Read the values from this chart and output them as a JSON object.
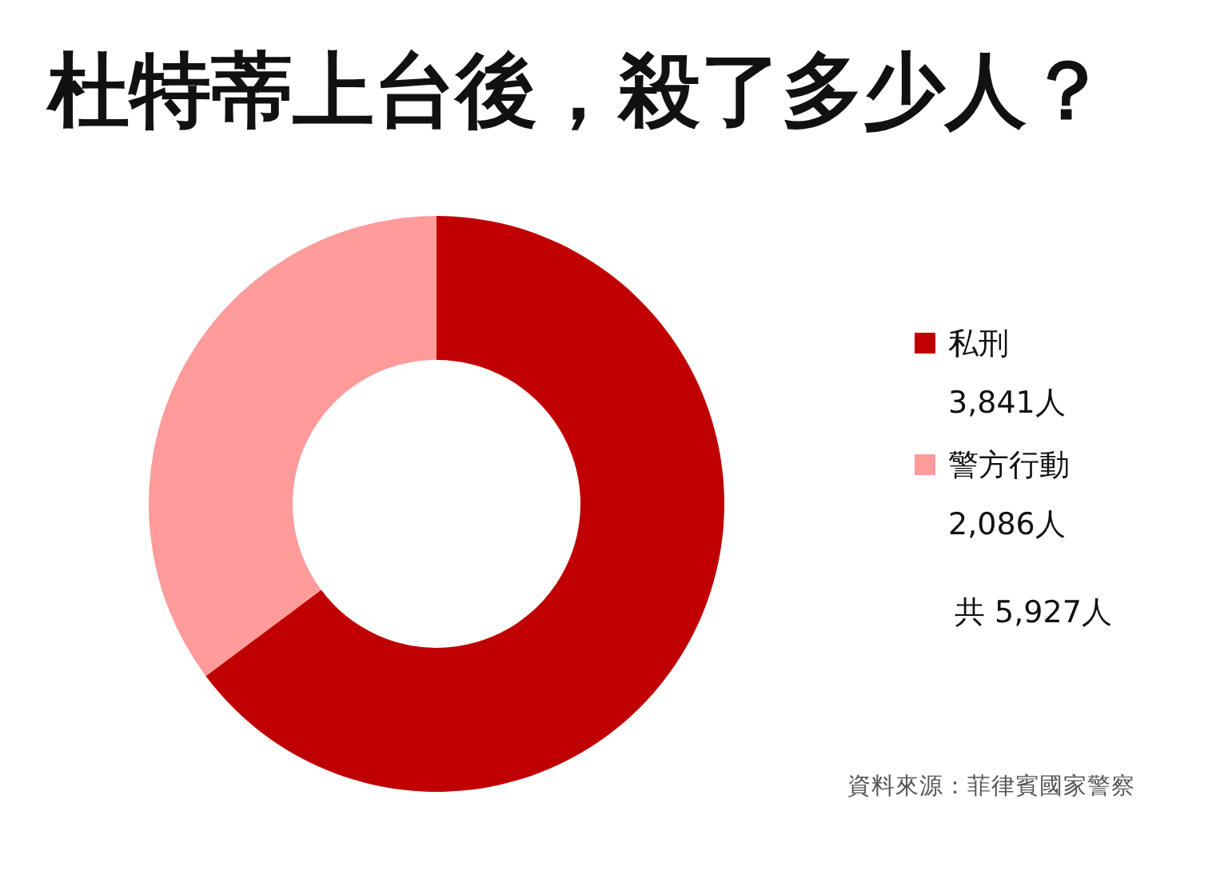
{
  "chart_data": {
    "type": "donut",
    "title": "杜特蒂上台後，殺了多少人？",
    "categories": [
      "私刑",
      "警方行動"
    ],
    "values": [
      3841,
      2086
    ],
    "colors": [
      "#c00000",
      "#ff9b9b"
    ],
    "value_labels": [
      "3,841人",
      "2,086人"
    ],
    "legend": "right",
    "annotations": [
      "共 5,927人",
      "資料來源：菲律賓國家警察"
    ]
  }
}
